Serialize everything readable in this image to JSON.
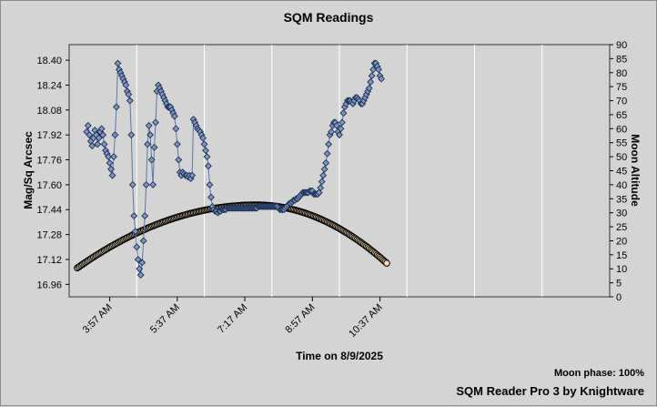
{
  "chart_data": {
    "type": "scatter",
    "title": "SQM Readings",
    "xlabel": "Time on 8/9/2025",
    "ylabel": "Mag/Sq Arcsec",
    "y2label": "Moon Altitude",
    "x_ticks": [
      "3:57 AM",
      "5:37 AM",
      "7:17 AM",
      "8:57 AM",
      "10:37 AM"
    ],
    "x_tick_minutes": [
      237,
      337,
      437,
      537,
      637
    ],
    "x_range_minutes": [
      177,
      977
    ],
    "grid_step_minutes": 100,
    "ylim": [
      16.88,
      18.5
    ],
    "yticks": [
      "17.12",
      "17.28",
      "17.44",
      "17.60",
      "17.76",
      "17.92",
      "18.08",
      "18.24",
      "18.40",
      "16.96"
    ],
    "ytick_values": [
      17.12,
      17.28,
      17.44,
      17.6,
      17.76,
      17.92,
      18.08,
      18.24,
      18.4,
      16.96
    ],
    "y2lim": [
      0,
      90
    ],
    "y2ticks": [
      "0",
      "5",
      "10",
      "15",
      "20",
      "25",
      "30",
      "35",
      "40",
      "45",
      "50",
      "55",
      "60",
      "65",
      "70",
      "75",
      "80",
      "85",
      "90"
    ],
    "grid": true,
    "series": [
      {
        "axis": "left",
        "color": "#5a78a8",
        "marker": "diamond",
        "points": [
          [
            203,
            17.94
          ],
          [
            205,
            17.98
          ],
          [
            207,
            17.92
          ],
          [
            209,
            17.88
          ],
          [
            211,
            17.85
          ],
          [
            213,
            17.9
          ],
          [
            215,
            17.95
          ],
          [
            217,
            17.92
          ],
          [
            219,
            17.86
          ],
          [
            221,
            17.9
          ],
          [
            223,
            17.94
          ],
          [
            225,
            17.96
          ],
          [
            227,
            17.92
          ],
          [
            229,
            17.86
          ],
          [
            231,
            17.82
          ],
          [
            233,
            17.8
          ],
          [
            235,
            17.78
          ],
          [
            237,
            17.74
          ],
          [
            239,
            17.7
          ],
          [
            241,
            17.66
          ],
          [
            243,
            17.78
          ],
          [
            245,
            17.92
          ],
          [
            247,
            18.1
          ],
          [
            249,
            18.38
          ],
          [
            251,
            18.34
          ],
          [
            253,
            18.32
          ],
          [
            255,
            18.3
          ],
          [
            257,
            18.28
          ],
          [
            259,
            18.26
          ],
          [
            261,
            18.24
          ],
          [
            263,
            18.2
          ],
          [
            265,
            18.18
          ],
          [
            267,
            18.14
          ],
          [
            269,
            17.92
          ],
          [
            271,
            17.6
          ],
          [
            273,
            17.4
          ],
          [
            275,
            17.3
          ],
          [
            277,
            17.2
          ],
          [
            279,
            17.12
          ],
          [
            281,
            17.06
          ],
          [
            283,
            17.02
          ],
          [
            285,
            17.1
          ],
          [
            287,
            17.24
          ],
          [
            289,
            17.4
          ],
          [
            291,
            17.6
          ],
          [
            293,
            17.86
          ],
          [
            295,
            17.98
          ],
          [
            297,
            17.92
          ],
          [
            299,
            17.76
          ],
          [
            301,
            17.6
          ],
          [
            303,
            17.84
          ],
          [
            305,
            18.0
          ],
          [
            307,
            18.2
          ],
          [
            309,
            18.24
          ],
          [
            311,
            18.22
          ],
          [
            313,
            18.2
          ],
          [
            315,
            18.18
          ],
          [
            317,
            18.16
          ],
          [
            319,
            18.14
          ],
          [
            321,
            18.12
          ],
          [
            323,
            18.1
          ],
          [
            325,
            18.1
          ],
          [
            327,
            18.1
          ],
          [
            329,
            18.08
          ],
          [
            331,
            18.06
          ],
          [
            333,
            18.04
          ],
          [
            335,
            17.96
          ],
          [
            337,
            17.86
          ],
          [
            339,
            17.76
          ],
          [
            341,
            17.68
          ],
          [
            343,
            17.66
          ],
          [
            345,
            17.68
          ],
          [
            347,
            17.67
          ],
          [
            349,
            17.66
          ],
          [
            351,
            17.66
          ],
          [
            353,
            17.65
          ],
          [
            355,
            17.66
          ],
          [
            357,
            17.64
          ],
          [
            359,
            17.66
          ],
          [
            361,
            18.02
          ],
          [
            363,
            18.0
          ],
          [
            365,
            17.98
          ],
          [
            367,
            17.96
          ],
          [
            369,
            17.95
          ],
          [
            371,
            17.94
          ],
          [
            373,
            17.92
          ],
          [
            375,
            17.9
          ],
          [
            377,
            17.86
          ],
          [
            379,
            17.82
          ],
          [
            381,
            17.78
          ],
          [
            383,
            17.72
          ],
          [
            385,
            17.6
          ],
          [
            387,
            17.52
          ],
          [
            389,
            17.46
          ],
          [
            391,
            17.44
          ],
          [
            393,
            17.43
          ],
          [
            395,
            17.43
          ],
          [
            397,
            17.42
          ],
          [
            399,
            17.43
          ],
          [
            401,
            17.43
          ],
          [
            403,
            17.44
          ],
          [
            405,
            17.44
          ],
          [
            407,
            17.44
          ],
          [
            409,
            17.44
          ],
          [
            411,
            17.45
          ],
          [
            413,
            17.45
          ],
          [
            415,
            17.45
          ],
          [
            417,
            17.45
          ],
          [
            419,
            17.45
          ],
          [
            421,
            17.45
          ],
          [
            423,
            17.45
          ],
          [
            425,
            17.45
          ],
          [
            427,
            17.45
          ],
          [
            429,
            17.45
          ],
          [
            431,
            17.45
          ],
          [
            433,
            17.45
          ],
          [
            435,
            17.45
          ],
          [
            437,
            17.45
          ],
          [
            439,
            17.45
          ],
          [
            441,
            17.45
          ],
          [
            443,
            17.45
          ],
          [
            445,
            17.45
          ],
          [
            447,
            17.45
          ],
          [
            449,
            17.45
          ],
          [
            451,
            17.45
          ],
          [
            453,
            17.45
          ],
          [
            455,
            17.45
          ],
          [
            457,
            17.46
          ],
          [
            459,
            17.46
          ],
          [
            461,
            17.46
          ],
          [
            463,
            17.46
          ],
          [
            465,
            17.46
          ],
          [
            467,
            17.46
          ],
          [
            469,
            17.46
          ],
          [
            471,
            17.46
          ],
          [
            473,
            17.46
          ],
          [
            475,
            17.46
          ],
          [
            477,
            17.46
          ],
          [
            479,
            17.46
          ],
          [
            481,
            17.46
          ],
          [
            483,
            17.46
          ],
          [
            485,
            17.46
          ],
          [
            487,
            17.45
          ],
          [
            489,
            17.44
          ],
          [
            491,
            17.44
          ],
          [
            493,
            17.44
          ],
          [
            495,
            17.44
          ],
          [
            497,
            17.45
          ],
          [
            499,
            17.46
          ],
          [
            501,
            17.47
          ],
          [
            503,
            17.48
          ],
          [
            505,
            17.48
          ],
          [
            507,
            17.49
          ],
          [
            509,
            17.5
          ],
          [
            511,
            17.5
          ],
          [
            513,
            17.51
          ],
          [
            515,
            17.51
          ],
          [
            517,
            17.52
          ],
          [
            519,
            17.53
          ],
          [
            521,
            17.54
          ],
          [
            523,
            17.55
          ],
          [
            525,
            17.55
          ],
          [
            527,
            17.55
          ],
          [
            529,
            17.55
          ],
          [
            531,
            17.55
          ],
          [
            533,
            17.56
          ],
          [
            535,
            17.56
          ],
          [
            537,
            17.56
          ],
          [
            539,
            17.54
          ],
          [
            541,
            17.54
          ],
          [
            543,
            17.54
          ],
          [
            545,
            17.54
          ],
          [
            547,
            17.55
          ],
          [
            549,
            17.58
          ],
          [
            551,
            17.62
          ],
          [
            553,
            17.66
          ],
          [
            555,
            17.7
          ],
          [
            557,
            17.74
          ],
          [
            559,
            17.8
          ],
          [
            561,
            17.86
          ],
          [
            563,
            17.92
          ],
          [
            565,
            17.94
          ],
          [
            567,
            17.98
          ],
          [
            569,
            18.0
          ],
          [
            571,
            18.0
          ],
          [
            573,
            17.98
          ],
          [
            575,
            17.94
          ],
          [
            577,
            17.92
          ],
          [
            579,
            17.96
          ],
          [
            581,
            18.0
          ],
          [
            583,
            18.06
          ],
          [
            585,
            18.1
          ],
          [
            587,
            18.12
          ],
          [
            589,
            18.14
          ],
          [
            591,
            18.14
          ],
          [
            593,
            18.14
          ],
          [
            595,
            18.13
          ],
          [
            597,
            18.12
          ],
          [
            599,
            18.14
          ],
          [
            601,
            18.16
          ],
          [
            603,
            18.16
          ],
          [
            605,
            18.15
          ],
          [
            607,
            18.14
          ],
          [
            609,
            18.12
          ],
          [
            611,
            18.12
          ],
          [
            613,
            18.14
          ],
          [
            615,
            18.16
          ],
          [
            617,
            18.18
          ],
          [
            619,
            18.2
          ],
          [
            621,
            18.22
          ],
          [
            623,
            18.26
          ],
          [
            625,
            18.3
          ],
          [
            627,
            18.34
          ],
          [
            629,
            18.38
          ],
          [
            631,
            18.38
          ],
          [
            633,
            18.36
          ],
          [
            635,
            18.34
          ],
          [
            637,
            18.3
          ],
          [
            639,
            18.28
          ]
        ]
      },
      {
        "axis": "right",
        "color": "#000000",
        "marker": "circle",
        "fill_start": "#f2e9c8",
        "fill_end": "#ffdcae",
        "x_start": 189,
        "x_end": 647,
        "x_step": 2,
        "peak_x": 454,
        "peak_y": 32.8,
        "start_y": 10.3,
        "end_y": 12.0
      }
    ],
    "moon_phase_label": "Moon phase: 100%",
    "footer": "SQM Reader Pro 3 by Knightware"
  }
}
